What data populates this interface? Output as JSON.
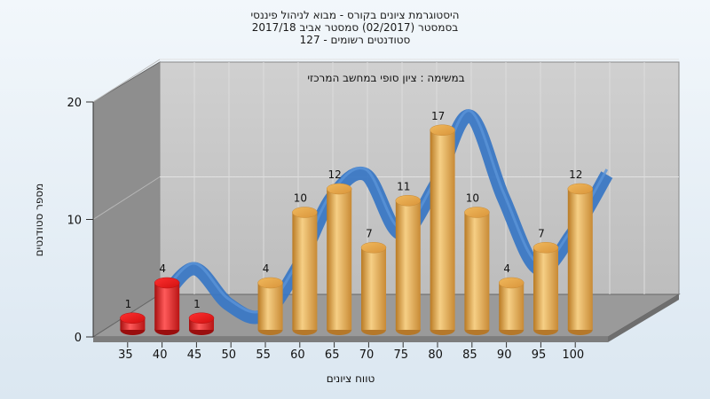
{
  "chart_data": {
    "type": "bar",
    "title_lines": [
      "היסטוגרמת ציונים בקורס - מבוא לניהול פיננסי",
      "בסמסטר  (02/2017)  סמסטר אביב 2017/18",
      "127 - סטודנטים רשומים"
    ],
    "subtitle": "במשימה : ציון סופי במחשב המרכזי",
    "xlabel": "טווח ציונים",
    "ylabel": "מספר סטודנטים",
    "categories": [
      "35",
      "40",
      "45",
      "50",
      "55",
      "60",
      "65",
      "70",
      "75",
      "80",
      "85",
      "90",
      "95",
      "100"
    ],
    "values": [
      1,
      4,
      1,
      0,
      4,
      10,
      12,
      7,
      11,
      17,
      10,
      4,
      7,
      12
    ],
    "y_ticks": [
      "0",
      "10",
      "20"
    ],
    "ylim": [
      0,
      20
    ],
    "colors": {
      "failing": "#e01a1a",
      "passing": "#e8a94a",
      "trend": "#3b78c4",
      "back_wall": "#c4c4c4",
      "left_wall": "#8e8e8e",
      "floor": "#9a9a9a"
    },
    "fail_threshold": 50,
    "trend_line": true,
    "grid": true
  }
}
